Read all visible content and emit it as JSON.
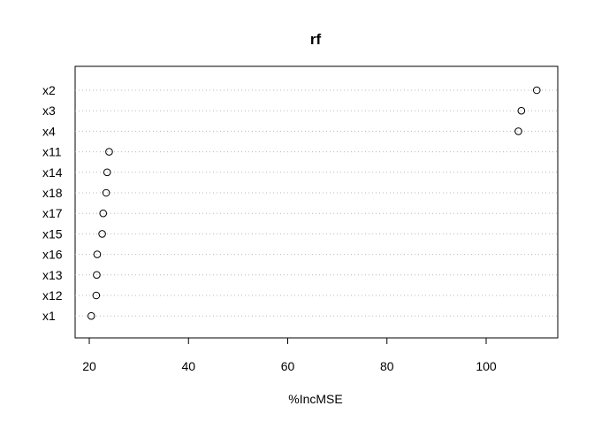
{
  "chart_data": {
    "type": "scatter",
    "subtype": "dotchart",
    "title": "rf",
    "xlabel": "%IncMSE",
    "ylabel": "",
    "xlim": [
      17.5,
      113.5
    ],
    "xticks": [
      20,
      40,
      60,
      80,
      100
    ],
    "grid": "dotted horizontal per category",
    "legend": "none",
    "categories": [
      "x2",
      "x3",
      "x4",
      "x11",
      "x14",
      "x18",
      "x17",
      "x15",
      "x16",
      "x13",
      "x12",
      "x1"
    ],
    "values": [
      110.2,
      107.1,
      106.5,
      24.0,
      23.6,
      23.4,
      22.8,
      22.6,
      21.6,
      21.5,
      21.4,
      20.4
    ]
  }
}
